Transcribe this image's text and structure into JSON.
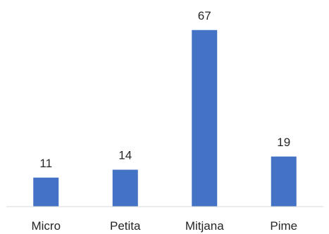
{
  "chart_data": {
    "type": "bar",
    "categories": [
      "Micro",
      "Petita",
      "Mitjana",
      "Pime"
    ],
    "values": [
      11,
      14,
      67,
      19
    ],
    "title": "",
    "xlabel": "",
    "ylabel": "",
    "ylim": [
      0,
      70
    ],
    "grid": false,
    "legend": "none",
    "bar_color": "#4472C4",
    "axis_color": "#D9D9D9",
    "label_color": "#262626"
  }
}
